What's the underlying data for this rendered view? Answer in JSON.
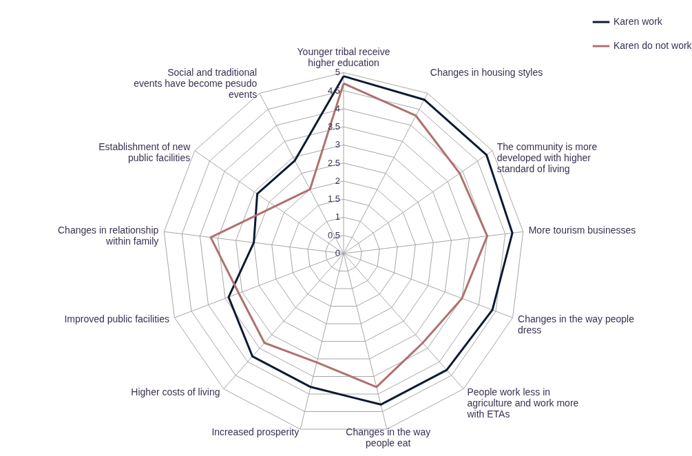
{
  "chart_data": {
    "type": "radar",
    "categories": [
      "Younger tribal receive higher education",
      "Changes in housing styles",
      "The community  is more developed with higher standard of living",
      "More tourism businesses",
      "Changes in the way people dress",
      "People work less in agriculture and work more with ETAs",
      "Changes in the way people eat",
      "Increased prosperity",
      "Higher costs of living",
      "Improved public facilities",
      "Changes in relationship within family",
      "Establishment  of new public facilities",
      "Social and traditional events have become pesudo events"
    ],
    "series": [
      {
        "name": "Karen work",
        "color": "#0d1a33",
        "values": [
          4.9,
          4.8,
          4.8,
          4.7,
          4.4,
          4.3,
          4.3,
          3.8,
          3.8,
          3.4,
          2.5,
          2.9,
          2.9
        ]
      },
      {
        "name": "Karen do not work",
        "color": "#b07070",
        "values": [
          4.7,
          4.3,
          3.9,
          4.0,
          3.5,
          3.3,
          3.8,
          3.1,
          3.3,
          3.1,
          3.7,
          2.3,
          2.0
        ]
      }
    ],
    "ylim": [
      0,
      5
    ],
    "yticks": [
      0,
      0.5,
      1,
      1.5,
      2,
      2.5,
      3,
      3.5,
      4,
      4.5,
      5
    ],
    "grid": true,
    "legend": "top right",
    "marker": "none",
    "line_style": "solid"
  }
}
